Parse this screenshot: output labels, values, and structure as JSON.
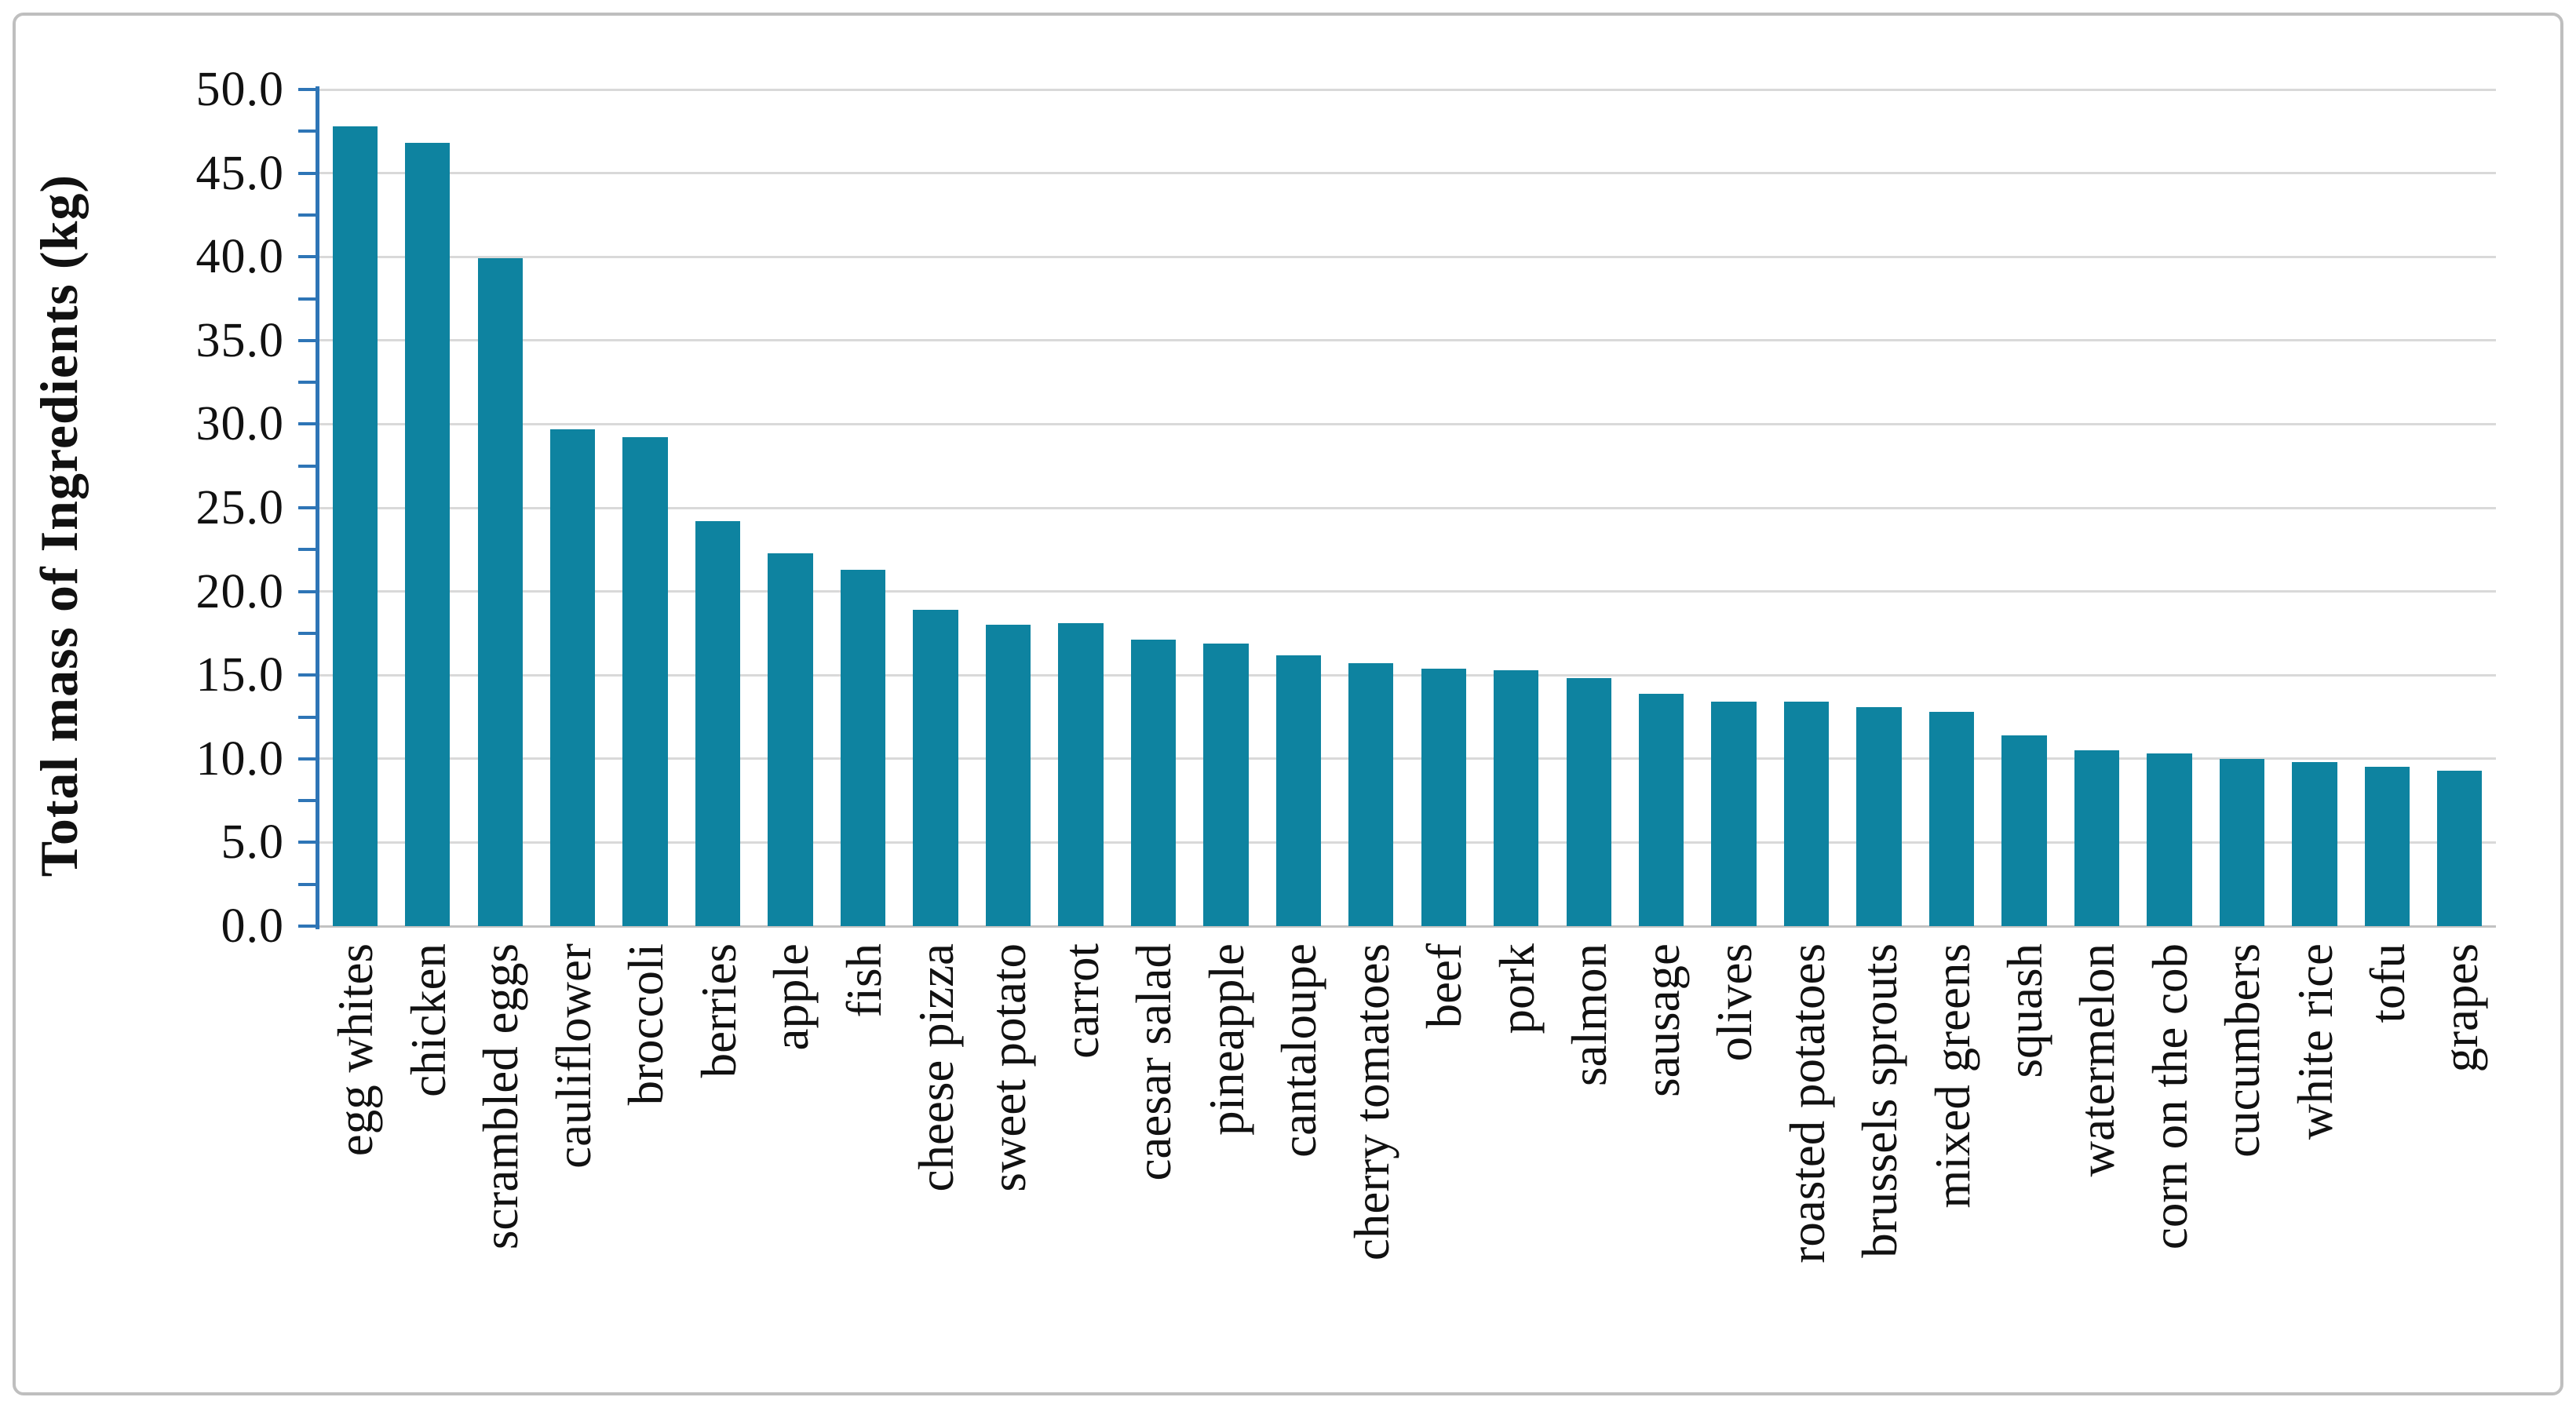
{
  "figure": {
    "background_color": "#ffffff",
    "frame_color": "#bfbfbf"
  },
  "chart_data": {
    "type": "bar",
    "title": "",
    "xlabel": "",
    "ylabel": "Total mass of Ingredients (kg)",
    "ylim": [
      0,
      50
    ],
    "y_major_step": 5,
    "y_minor_step": 2.5,
    "y_tick_labels": [
      "0.0",
      "5.0",
      "10.0",
      "15.0",
      "20.0",
      "25.0",
      "30.0",
      "35.0",
      "40.0",
      "45.0",
      "50.0"
    ],
    "grid": "horizontal",
    "legend_position": "none",
    "bar_color": "#0e83a0",
    "axis_line_color": "#2e75b6",
    "gridline_color": "#d9d9d9",
    "categories": [
      "egg whites",
      "chicken",
      "scrambled eggs",
      "cauliflower",
      "broccoli",
      "berries",
      "apple",
      "fish",
      "cheese pizza",
      "sweet potato",
      "carrot",
      "caesar salad",
      "pineapple",
      "cantaloupe",
      "cherry tomatoes",
      "beef",
      "pork",
      "salmon",
      "sausage",
      "olives",
      "roasted potatoes",
      "brussels sprouts",
      "mixed greens",
      "squash",
      "watermelon",
      "corn on the cob",
      "cucumbers",
      "white rice",
      "tofu",
      "grapes"
    ],
    "values": [
      47.8,
      46.8,
      39.9,
      29.7,
      29.2,
      24.2,
      22.3,
      21.3,
      18.9,
      18.0,
      18.1,
      17.1,
      16.9,
      16.2,
      15.7,
      15.4,
      15.3,
      14.8,
      13.9,
      13.4,
      13.4,
      13.1,
      12.8,
      11.4,
      10.5,
      10.3,
      10.0,
      9.8,
      9.5,
      9.3
    ]
  }
}
